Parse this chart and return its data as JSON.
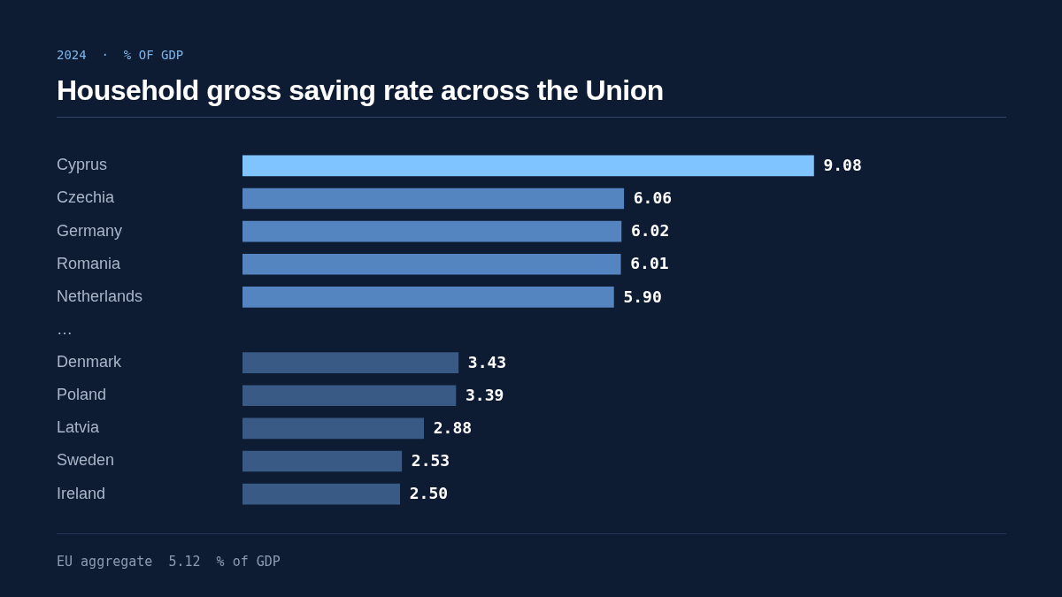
{
  "chart_data": {
    "type": "bar",
    "orientation": "horizontal",
    "title": "Household gross saving rate across the Union",
    "subtitle": "2024  ·  % OF GDP",
    "categories": [
      "Cyprus",
      "Czechia",
      "Germany",
      "Romania",
      "Netherlands",
      "…",
      "Denmark",
      "Poland",
      "Latvia",
      "Sweden",
      "Ireland"
    ],
    "values": [
      9.08,
      6.06,
      6.02,
      6.01,
      5.9,
      null,
      3.43,
      3.39,
      2.88,
      2.53,
      2.5
    ],
    "value_labels": [
      "9.08",
      "6.06",
      "6.02",
      "6.01",
      "5.90",
      null,
      "3.43",
      "3.39",
      "2.88",
      "2.53",
      "2.50"
    ],
    "colors": [
      "#7fc4ff",
      "#5585c0",
      "#5585c0",
      "#5585c0",
      "#5585c0",
      null,
      "#3a5a86",
      "#3a5a86",
      "#3a5a86",
      "#3a5a86",
      "#3a5a86"
    ],
    "annotations": [
      "EU aggregate  5.12  % of GDP"
    ],
    "grid": false,
    "legend": false
  }
}
